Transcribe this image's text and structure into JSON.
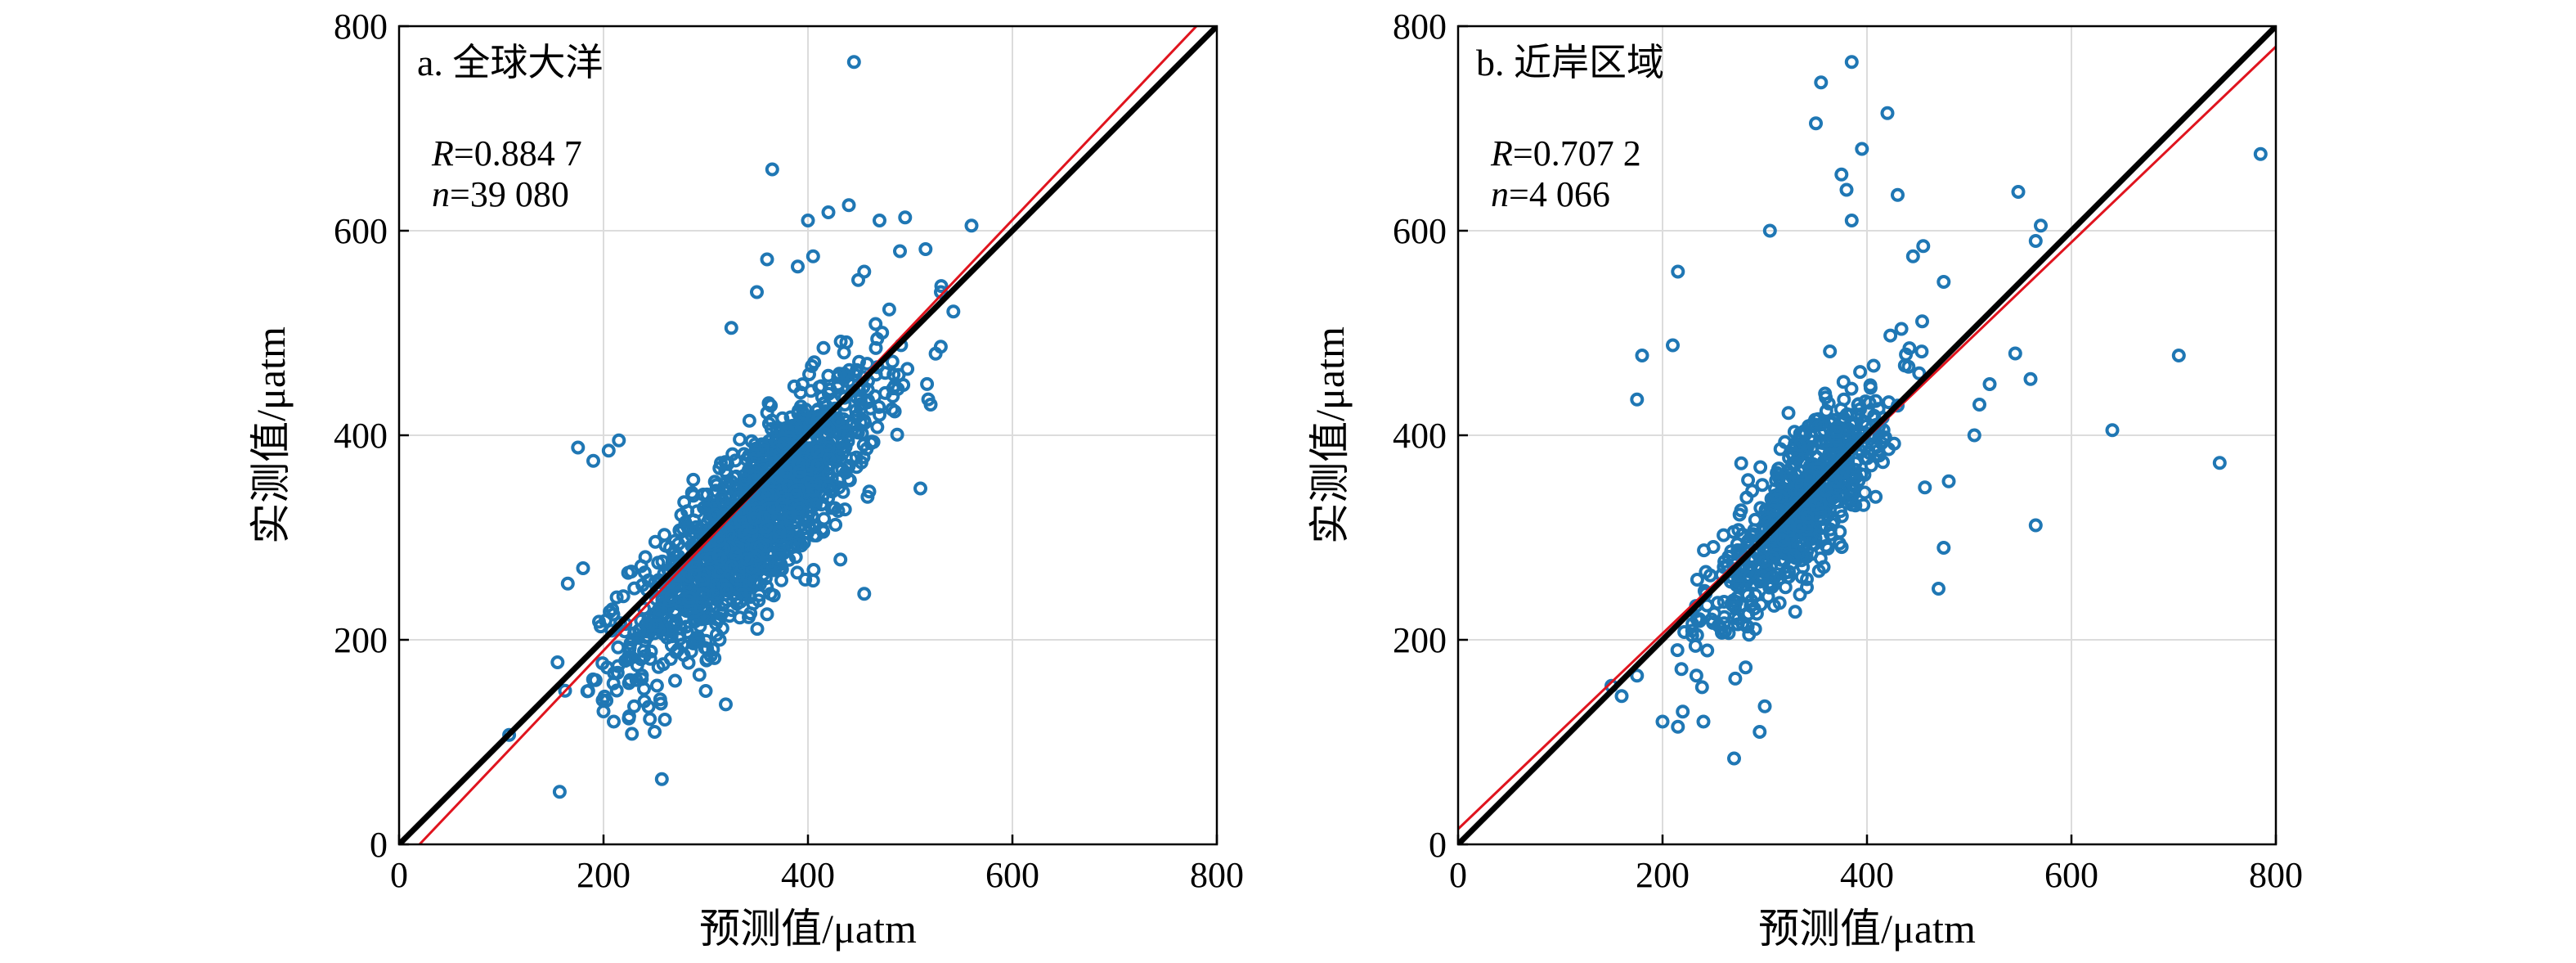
{
  "chart_data": [
    {
      "type": "scatter",
      "panel_title": "a. 全球大洋",
      "xlabel": "预测值/μatm",
      "ylabel": "实测值/μatm",
      "xlim": [
        0,
        800
      ],
      "ylim": [
        0,
        800
      ],
      "xticks": [
        0,
        200,
        400,
        600,
        800
      ],
      "yticks": [
        0,
        200,
        400,
        600,
        800
      ],
      "grid": true,
      "stats": {
        "R_label": "R",
        "R_value": "=0.884 7",
        "n_label": "n",
        "n_value": "=39 080"
      },
      "lines": [
        {
          "name": "1:1",
          "color": "#000000",
          "x": [
            0,
            800
          ],
          "y": [
            0,
            800
          ]
        },
        {
          "name": "fit",
          "color": "#e0141e",
          "x": [
            20,
            780
          ],
          "y": [
            0,
            800
          ]
        }
      ],
      "cluster": {
        "center": [
          350,
          320
        ],
        "spread": [
          60,
          70
        ],
        "count": 1400
      },
      "outliers": [
        [
          155,
          178
        ],
        [
          175,
          388
        ],
        [
          190,
          375
        ],
        [
          205,
          385
        ],
        [
          215,
          395
        ],
        [
          165,
          255
        ],
        [
          180,
          270
        ],
        [
          185,
          150
        ],
        [
          200,
          130
        ],
        [
          210,
          120
        ],
        [
          230,
          135
        ],
        [
          250,
          110
        ],
        [
          260,
          122
        ],
        [
          240,
          140
        ],
        [
          270,
          160
        ],
        [
          300,
          150
        ],
        [
          330,
          240
        ],
        [
          360,
          225
        ],
        [
          420,
          350
        ],
        [
          440,
          370
        ],
        [
          460,
          345
        ],
        [
          510,
          348
        ],
        [
          520,
          430
        ],
        [
          470,
          420
        ],
        [
          455,
          245
        ],
        [
          350,
          540
        ],
        [
          360,
          572
        ],
        [
          390,
          565
        ],
        [
          400,
          610
        ],
        [
          420,
          618
        ],
        [
          440,
          625
        ],
        [
          470,
          610
        ],
        [
          495,
          613
        ],
        [
          560,
          605
        ],
        [
          365,
          660
        ],
        [
          445,
          765
        ],
        [
          405,
          575
        ],
        [
          455,
          560
        ],
        [
          490,
          580
        ],
        [
          515,
          582
        ],
        [
          530,
          540
        ],
        [
          325,
          505
        ]
      ],
      "marker_color": "#1f77b4"
    },
    {
      "type": "scatter",
      "panel_title": "b. 近岸区域",
      "xlabel": "预测值/μatm",
      "ylabel": "实测值/μatm",
      "xlim": [
        0,
        800
      ],
      "ylim": [
        0,
        800
      ],
      "xticks": [
        0,
        200,
        400,
        600,
        800
      ],
      "yticks": [
        0,
        200,
        400,
        600,
        800
      ],
      "grid": true,
      "stats": {
        "R_label": "R",
        "R_value": "=0.707 2",
        "n_label": "n",
        "n_value": "=4 066"
      },
      "lines": [
        {
          "name": "1:1",
          "color": "#000000",
          "x": [
            0,
            800
          ],
          "y": [
            0,
            800
          ]
        },
        {
          "name": "fit",
          "color": "#e0141e",
          "x": [
            0,
            800
          ],
          "y": [
            15,
            780
          ]
        }
      ],
      "cluster": {
        "center": [
          335,
          330
        ],
        "spread": [
          45,
          60
        ],
        "count": 700
      },
      "outliers": [
        [
          785,
          675
        ],
        [
          640,
          405
        ],
        [
          705,
          478
        ],
        [
          745,
          373
        ],
        [
          565,
          312
        ],
        [
          570,
          605
        ],
        [
          565,
          590
        ],
        [
          548,
          638
        ],
        [
          560,
          455
        ],
        [
          545,
          480
        ],
        [
          385,
          765
        ],
        [
          420,
          715
        ],
        [
          355,
          745
        ],
        [
          350,
          705
        ],
        [
          395,
          680
        ],
        [
          375,
          655
        ],
        [
          380,
          640
        ],
        [
          385,
          610
        ],
        [
          430,
          635
        ],
        [
          305,
          600
        ],
        [
          215,
          560
        ],
        [
          175,
          435
        ],
        [
          180,
          478
        ],
        [
          210,
          488
        ],
        [
          150,
          155
        ],
        [
          160,
          145
        ],
        [
          175,
          165
        ],
        [
          200,
          120
        ],
        [
          215,
          115
        ],
        [
          240,
          120
        ],
        [
          270,
          84
        ],
        [
          295,
          110
        ],
        [
          300,
          135
        ],
        [
          470,
          250
        ],
        [
          475,
          290
        ],
        [
          480,
          355
        ],
        [
          505,
          400
        ],
        [
          510,
          430
        ],
        [
          520,
          450
        ],
        [
          455,
          585
        ],
        [
          445,
          575
        ],
        [
          475,
          550
        ]
      ],
      "marker_color": "#1f77b4"
    }
  ]
}
